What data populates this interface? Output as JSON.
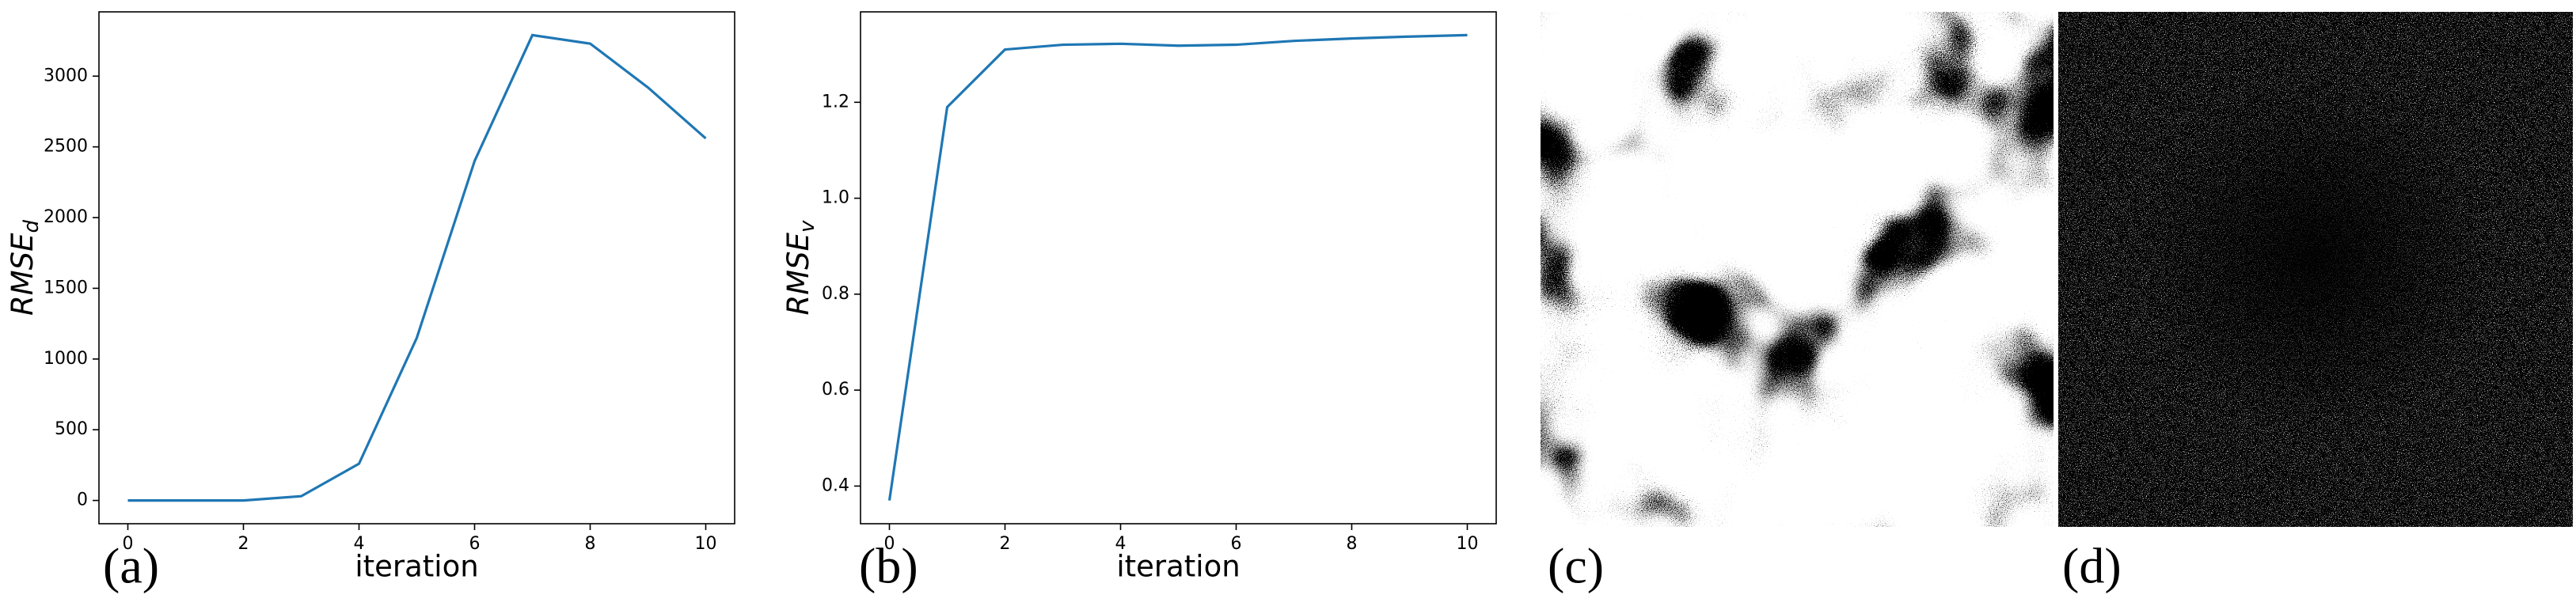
{
  "chart_data": [
    {
      "type": "line",
      "panel_label": "(a)",
      "xlabel": "iteration",
      "ylabel": {
        "text": "RMSE",
        "subscript": "d"
      },
      "x": [
        0,
        1,
        2,
        3,
        4,
        5,
        6,
        7,
        8,
        9,
        10
      ],
      "series": [
        {
          "color": "#1f77b4",
          "values": [
            0,
            0,
            0,
            30,
            260,
            1150,
            2400,
            3290,
            3230,
            2920,
            2560
          ]
        }
      ],
      "xlim": [
        -0.5,
        10.5
      ],
      "xticks": [
        0,
        2,
        4,
        6,
        8,
        10
      ],
      "ylim": [
        -164.5,
        3454.5
      ],
      "yticks": [
        0,
        500,
        1000,
        1500,
        2000,
        2500,
        3000
      ]
    },
    {
      "type": "line",
      "panel_label": "(b)",
      "xlabel": "iteration",
      "ylabel": {
        "text": "RMSE",
        "subscript": "v"
      },
      "x": [
        0,
        1,
        2,
        3,
        4,
        5,
        6,
        7,
        8,
        9,
        10
      ],
      "series": [
        {
          "color": "#1f77b4",
          "values": [
            0.37,
            1.19,
            1.31,
            1.32,
            1.322,
            1.318,
            1.32,
            1.328,
            1.333,
            1.337,
            1.34
          ]
        }
      ],
      "xlim": [
        -0.5,
        10.5
      ],
      "xticks": [
        0,
        2,
        4,
        6,
        8,
        10
      ],
      "ylim": [
        0.3215,
        1.3885
      ],
      "yticks": [
        0.4,
        0.6,
        0.8,
        {
          "value": 1,
          "label": "1.0"
        },
        1.2
      ]
    }
  ],
  "images": [
    {
      "label": "(c)"
    },
    {
      "label": "(d)"
    }
  ]
}
